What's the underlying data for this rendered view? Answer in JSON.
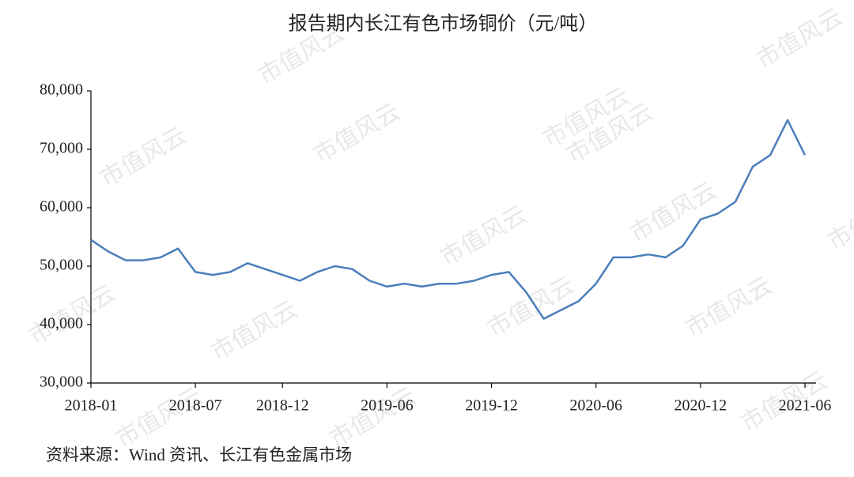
{
  "watermark": "市值风云",
  "chart_data": {
    "type": "line",
    "title": "报告期内长江有色市场铜价（元/吨）",
    "source": "资料来源：Wind 资讯、长江有色金属市场",
    "x": [
      "2018-01",
      "2018-02",
      "2018-03",
      "2018-04",
      "2018-05",
      "2018-06",
      "2018-07",
      "2018-08",
      "2018-09",
      "2018-10",
      "2018-11",
      "2018-12",
      "2019-01",
      "2019-02",
      "2019-03",
      "2019-04",
      "2019-05",
      "2019-06",
      "2019-07",
      "2019-08",
      "2019-09",
      "2019-10",
      "2019-11",
      "2019-12",
      "2020-01",
      "2020-02",
      "2020-03",
      "2020-04",
      "2020-05",
      "2020-06",
      "2020-07",
      "2020-08",
      "2020-09",
      "2020-10",
      "2020-11",
      "2020-12",
      "2021-01",
      "2021-02",
      "2021-03",
      "2021-04",
      "2021-05",
      "2021-06"
    ],
    "series": [
      {
        "name": "铜价",
        "color": "#4a7ebb",
        "values": [
          54500,
          52500,
          51000,
          51000,
          51500,
          53000,
          49000,
          48500,
          49000,
          50500,
          49500,
          48500,
          47500,
          49000,
          50000,
          49500,
          47500,
          46500,
          47000,
          46500,
          47000,
          47000,
          47500,
          48500,
          49000,
          45500,
          41000,
          42500,
          44000,
          47000,
          51500,
          51500,
          52000,
          51500,
          53500,
          58000,
          59000,
          61000,
          67000,
          69000,
          75000,
          69000
        ]
      }
    ],
    "xlim": [
      "2018-01",
      "2021-06"
    ],
    "xticks": [
      "2018-01",
      "2018-07",
      "2018-12",
      "2019-06",
      "2019-12",
      "2020-06",
      "2020-12",
      "2021-06"
    ],
    "ylim": [
      30000,
      80000
    ],
    "yticks": [
      {
        "value": 30000,
        "label": "30,000"
      },
      {
        "value": 40000,
        "label": "40,000"
      },
      {
        "value": 50000,
        "label": "50,000"
      },
      {
        "value": 60000,
        "label": "60,000"
      },
      {
        "value": 70000,
        "label": "70,000"
      },
      {
        "value": 80000,
        "label": "80,000"
      }
    ]
  }
}
